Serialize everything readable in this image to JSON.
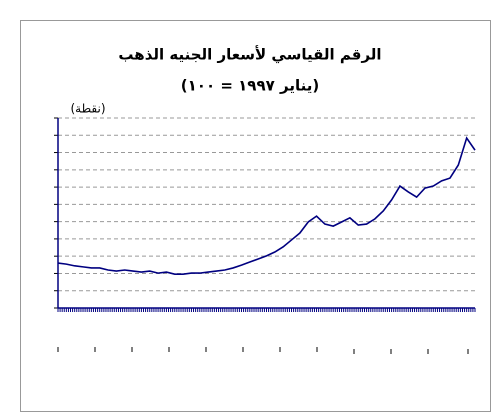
{
  "chart_data": {
    "type": "line",
    "title": "الرقم القياسي لأسعار الجنيه الذهب",
    "subtitle": "(يناير ١٩٩٧ = ١٠٠)",
    "y_label": "(نقطة)",
    "categories": [
      null,
      null,
      null,
      null,
      null,
      null,
      null,
      null,
      null,
      null,
      null,
      null,
      null,
      null,
      null,
      null,
      null,
      null,
      null,
      null,
      null,
      null,
      null,
      null,
      null,
      null,
      null,
      null,
      null,
      null,
      null,
      null,
      null,
      null,
      null,
      null,
      null,
      null,
      null,
      null,
      null,
      null,
      null,
      null,
      null,
      null,
      null,
      null,
      null,
      null,
      null
    ],
    "series": [
      {
        "name": null,
        "color": "#000080",
        "values": [
          130,
          127,
          122,
          119,
          116,
          116,
          110,
          107,
          110,
          107,
          104,
          107,
          101,
          104,
          98,
          98,
          101,
          101,
          104,
          107,
          110,
          116,
          124,
          133,
          142,
          151,
          162,
          177,
          197,
          217,
          249,
          266,
          243,
          237,
          249,
          261,
          240,
          243,
          258,
          281,
          313,
          353,
          336,
          321,
          347,
          353,
          368,
          376,
          414,
          492,
          457
        ]
      }
    ],
    "ylim": [
      0,
      550
    ],
    "yticks": [
      0,
      50,
      100,
      150,
      200,
      250,
      300,
      350,
      400,
      450,
      500,
      550
    ],
    "grid": true
  }
}
